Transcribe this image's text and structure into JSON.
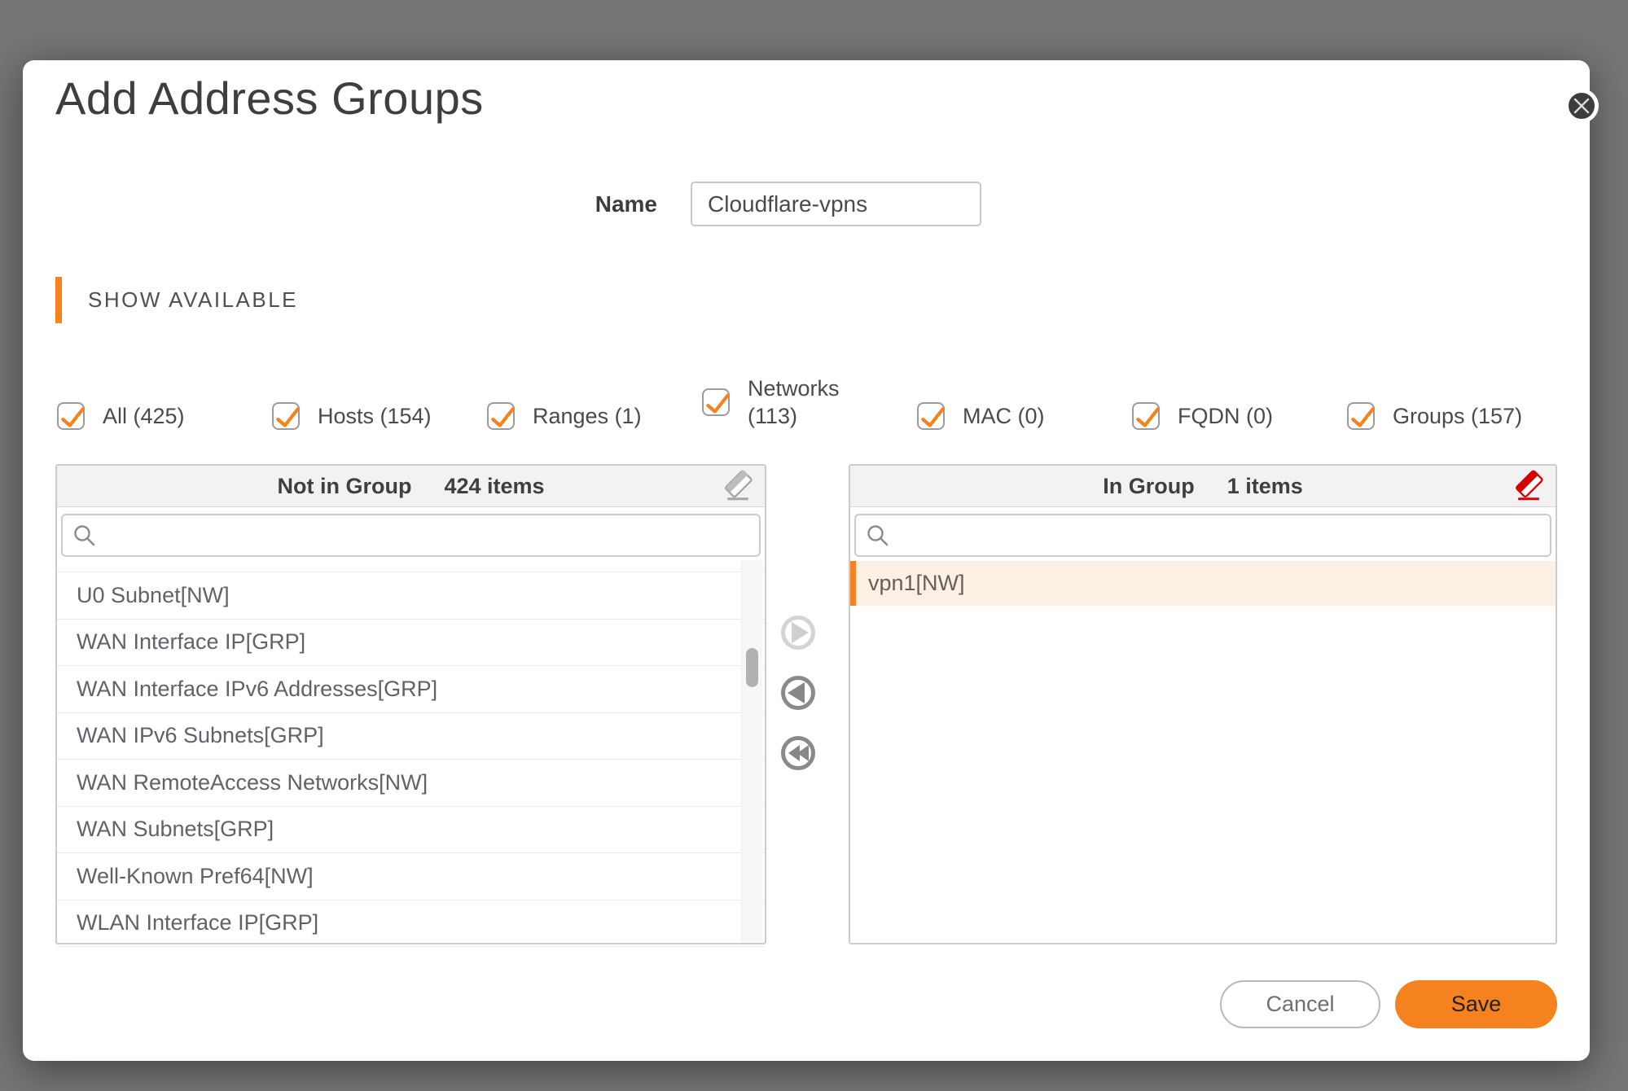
{
  "modal": {
    "title": "Add Address Groups"
  },
  "name_field": {
    "label": "Name",
    "value": "Cloudflare-vpns"
  },
  "section": {
    "heading": "SHOW AVAILABLE"
  },
  "filters": [
    {
      "key": "all",
      "label": "All (425)",
      "checked": true,
      "wrap": false
    },
    {
      "key": "hosts",
      "label": "Hosts (154)",
      "checked": true,
      "wrap": false
    },
    {
      "key": "ranges",
      "label": "Ranges (1)",
      "checked": true,
      "wrap": false
    },
    {
      "key": "networks",
      "label": "Networks (113)",
      "checked": true,
      "wrap": true
    },
    {
      "key": "mac",
      "label": "MAC (0)",
      "checked": true,
      "wrap": false
    },
    {
      "key": "fqdn",
      "label": "FQDN (0)",
      "checked": true,
      "wrap": false
    },
    {
      "key": "groups",
      "label": "Groups (157)",
      "checked": true,
      "wrap": false
    }
  ],
  "left_panel": {
    "title": "Not in Group",
    "count": "424 items",
    "search_value": "",
    "items": [
      "U0 Subnet[NW]",
      "WAN Interface IP[GRP]",
      "WAN Interface IPv6 Addresses[GRP]",
      "WAN IPv6 Subnets[GRP]",
      "WAN RemoteAccess Networks[NW]",
      "WAN Subnets[GRP]",
      "Well-Known Pref64[NW]",
      "WLAN Interface IP[GRP]"
    ]
  },
  "right_panel": {
    "title": "In Group",
    "count": "1 items",
    "search_value": "",
    "items": [
      "vpn1[NW]"
    ]
  },
  "footer": {
    "cancel_label": "Cancel",
    "save_label": "Save"
  },
  "colors": {
    "accent_orange": "#f6821f",
    "danger_red": "#d50000",
    "eraser_gray": "#a5a5a5",
    "selected_row_bg": "#fcefe3",
    "backdrop": "#767676"
  }
}
